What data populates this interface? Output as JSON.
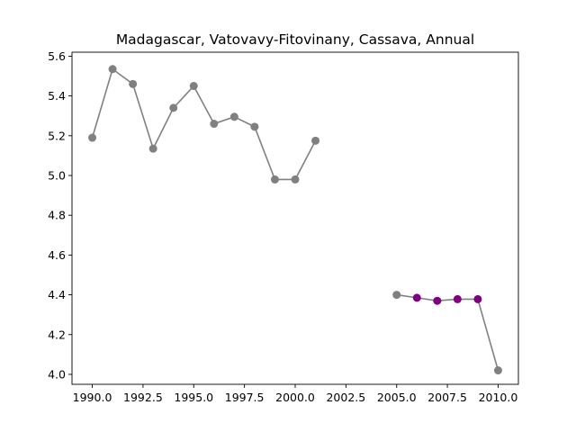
{
  "chart_data": {
    "type": "line",
    "title": "Madagascar, Vatovavy-Fitovinany, Cassava, Annual",
    "xlabel": "",
    "ylabel": "",
    "xlim": [
      1989.0,
      2011.0
    ],
    "ylim": [
      3.95,
      5.62
    ],
    "grid": false,
    "xticks": [
      1990.0,
      1992.5,
      1995.0,
      1997.5,
      2000.0,
      2002.5,
      2005.0,
      2007.5,
      2010.0
    ],
    "xtick_labels": [
      "1990.0",
      "1992.5",
      "1995.0",
      "1997.5",
      "2000.0",
      "2002.5",
      "2005.0",
      "2007.5",
      "2010.0"
    ],
    "yticks": [
      4.0,
      4.2,
      4.4,
      4.6,
      4.8,
      5.0,
      5.2,
      5.4,
      5.6
    ],
    "ytick_labels": [
      "4.0",
      "4.2",
      "4.4",
      "4.6",
      "4.8",
      "5.0",
      "5.2",
      "5.4",
      "5.6"
    ],
    "line_color": "#808080",
    "highlight_color": "#800080",
    "segments": [
      {
        "x": [
          1990,
          1991,
          1992,
          1993,
          1994,
          1995,
          1996,
          1997,
          1998,
          1999,
          2000,
          2001
        ],
        "y": [
          5.19,
          5.535,
          5.46,
          5.135,
          5.34,
          5.45,
          5.26,
          5.295,
          5.245,
          4.98,
          4.98,
          5.175
        ],
        "highlighted": [
          false,
          false,
          false,
          false,
          false,
          false,
          false,
          false,
          false,
          false,
          false,
          false
        ]
      },
      {
        "x": [
          2005,
          2006,
          2007,
          2008,
          2009,
          2010
        ],
        "y": [
          4.4,
          4.385,
          4.37,
          4.378,
          4.378,
          4.02
        ],
        "highlighted": [
          false,
          true,
          true,
          true,
          true,
          false
        ]
      }
    ]
  }
}
